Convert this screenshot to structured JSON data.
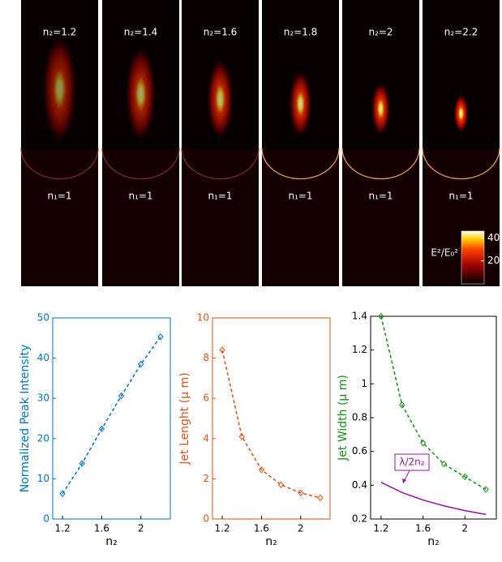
{
  "chart_data": [
    {
      "type": "field-map",
      "panels": [
        {
          "top": "n₂=1.2",
          "bottom": "n₁=1"
        },
        {
          "top": "n₂=1.4",
          "bottom": "n₁=1"
        },
        {
          "top": "n₂=1.6",
          "bottom": "n₁=1"
        },
        {
          "top": "n₂=1.8",
          "bottom": "n₁=1"
        },
        {
          "top": "n₂=2",
          "bottom": "n₁=1"
        },
        {
          "top": "n₂=2.2",
          "bottom": "n₁=1"
        }
      ],
      "colorbar": {
        "label": "E²/E₀²",
        "clim": [
          0,
          46
        ],
        "ticks": [
          20,
          40
        ]
      }
    },
    {
      "type": "line",
      "xlabel": "n₂",
      "ylabel": "Normalized Peak Intensity",
      "axis_color": "#0072bd",
      "x": [
        1.2,
        1.4,
        1.6,
        1.8,
        2,
        2.2
      ],
      "xlim": [
        1.1,
        2.3
      ],
      "xticks": [
        1.2,
        1.6,
        2
      ],
      "ylim": [
        0,
        50
      ],
      "yticks": [
        0,
        10,
        20,
        30,
        40,
        50
      ],
      "series": [
        {
          "color": "#0072bd",
          "style": "dashed",
          "marker": "diamond",
          "values": [
            6.3,
            13.8,
            22.4,
            30.6,
            38.5,
            45.3
          ]
        }
      ]
    },
    {
      "type": "line",
      "xlabel": "n₂",
      "ylabel": "Jet Lenght (μ m)",
      "axis_color": "#d95319",
      "x": [
        1.2,
        1.4,
        1.6,
        1.8,
        2,
        2.2
      ],
      "xlim": [
        1.1,
        2.3
      ],
      "xticks": [
        1.2,
        1.6,
        2
      ],
      "ylim": [
        0,
        10
      ],
      "yticks": [
        0,
        2,
        4,
        6,
        8,
        10
      ],
      "series": [
        {
          "color": "#d95319",
          "style": "dashed",
          "marker": "diamond",
          "values": [
            8.4,
            4.1,
            2.45,
            1.7,
            1.3,
            1.05
          ]
        }
      ]
    },
    {
      "type": "line",
      "xlabel": "n₂",
      "ylabel": "Jet Width (μ m)",
      "axis_color": "#000000",
      "ylabel_color": "#1a8c1a",
      "x": [
        1.2,
        1.4,
        1.6,
        1.8,
        2,
        2.2
      ],
      "xlim": [
        1.1,
        2.3
      ],
      "xticks": [
        1.2,
        1.6,
        2
      ],
      "ylim": [
        0.2,
        1.4
      ],
      "yticks": [
        0.2,
        0.4,
        0.6,
        0.8,
        1,
        1.2,
        1.4
      ],
      "series": [
        {
          "color": "#1a8c1a",
          "style": "dashed",
          "marker": "diamond",
          "values": [
            1.4,
            0.875,
            0.65,
            0.525,
            0.45,
            0.375
          ]
        },
        {
          "name": "λ/2n₂",
          "color": "#8b1a9b",
          "style": "solid",
          "values": [
            0.417,
            0.357,
            0.3125,
            0.278,
            0.25,
            0.227
          ]
        }
      ]
    }
  ]
}
